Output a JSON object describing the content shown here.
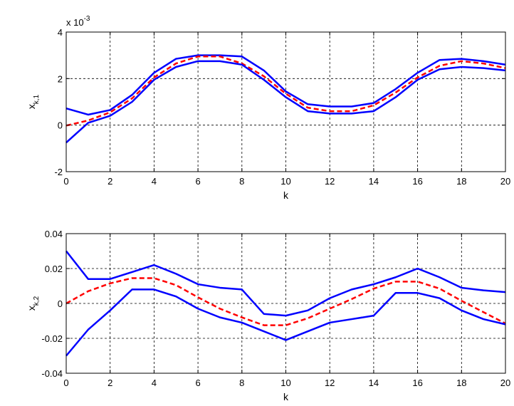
{
  "chart_data": [
    {
      "type": "line",
      "xlabel": "k",
      "ylabel_main": "x",
      "ylabel_sub": "k,1",
      "exponent_label": "x 10",
      "exponent_power": "-3",
      "xlim": [
        0,
        20
      ],
      "ylim": [
        -2,
        4
      ],
      "xticks": [
        "0",
        "2",
        "4",
        "6",
        "8",
        "10",
        "12",
        "14",
        "16",
        "18",
        "20"
      ],
      "yticks": [
        "-2",
        "0",
        "2",
        "4"
      ],
      "grid": true,
      "x": [
        0,
        1,
        2,
        3,
        4,
        5,
        6,
        7,
        8,
        9,
        10,
        11,
        12,
        13,
        14,
        15,
        16,
        17,
        18,
        19,
        20
      ],
      "series": [
        {
          "role": "upper",
          "style": "solid",
          "color": "#0000ff",
          "values": [
            0.72,
            0.45,
            0.65,
            1.3,
            2.25,
            2.85,
            3.0,
            3.0,
            2.95,
            2.35,
            1.45,
            0.9,
            0.8,
            0.8,
            0.95,
            1.55,
            2.25,
            2.8,
            2.85,
            2.75,
            2.6
          ]
        },
        {
          "role": "estimate",
          "style": "dashed",
          "color": "#ff0000",
          "values": [
            -0.02,
            0.2,
            0.55,
            1.15,
            2.05,
            2.65,
            2.95,
            2.95,
            2.65,
            2.1,
            1.35,
            0.75,
            0.6,
            0.6,
            0.85,
            1.4,
            2.05,
            2.55,
            2.75,
            2.65,
            2.45
          ]
        },
        {
          "role": "lower",
          "style": "solid",
          "color": "#0000ff",
          "values": [
            -0.75,
            0.1,
            0.4,
            1.0,
            1.95,
            2.5,
            2.75,
            2.75,
            2.6,
            1.95,
            1.2,
            0.6,
            0.5,
            0.5,
            0.6,
            1.2,
            1.95,
            2.4,
            2.5,
            2.45,
            2.35
          ]
        }
      ]
    },
    {
      "type": "line",
      "xlabel": "k",
      "ylabel_main": "x",
      "ylabel_sub": "k,2",
      "xlim": [
        0,
        20
      ],
      "ylim": [
        -0.04,
        0.04
      ],
      "xticks": [
        "0",
        "2",
        "4",
        "6",
        "8",
        "10",
        "12",
        "14",
        "16",
        "18",
        "20"
      ],
      "yticks": [
        "-0.04",
        "-0.02",
        "0",
        "0.02",
        "0.04"
      ],
      "grid": true,
      "x": [
        0,
        1,
        2,
        3,
        4,
        5,
        6,
        7,
        8,
        9,
        10,
        11,
        12,
        13,
        14,
        15,
        16,
        17,
        18,
        19,
        20
      ],
      "series": [
        {
          "role": "upper",
          "style": "solid",
          "color": "#0000ff",
          "values": [
            0.03,
            0.014,
            0.014,
            0.018,
            0.022,
            0.017,
            0.011,
            0.009,
            0.008,
            -0.006,
            -0.007,
            -0.004,
            0.003,
            0.008,
            0.011,
            0.015,
            0.02,
            0.015,
            0.009,
            0.0075,
            0.0065
          ]
        },
        {
          "role": "estimate",
          "style": "dashed",
          "color": "#ff0000",
          "values": [
            0,
            0.007,
            0.0115,
            0.0145,
            0.0145,
            0.0105,
            0.0035,
            -0.003,
            -0.008,
            -0.0125,
            -0.0125,
            -0.0085,
            -0.003,
            0.0025,
            0.0085,
            0.0125,
            0.0125,
            0.0085,
            0.0015,
            -0.005,
            -0.0115
          ]
        },
        {
          "role": "lower",
          "style": "solid",
          "color": "#0000ff",
          "values": [
            -0.03,
            -0.015,
            -0.004,
            0.008,
            0.008,
            0.004,
            -0.003,
            -0.008,
            -0.011,
            -0.016,
            -0.021,
            -0.016,
            -0.011,
            -0.009,
            -0.007,
            0.006,
            0.006,
            0.003,
            -0.004,
            -0.009,
            -0.012
          ]
        }
      ]
    }
  ]
}
